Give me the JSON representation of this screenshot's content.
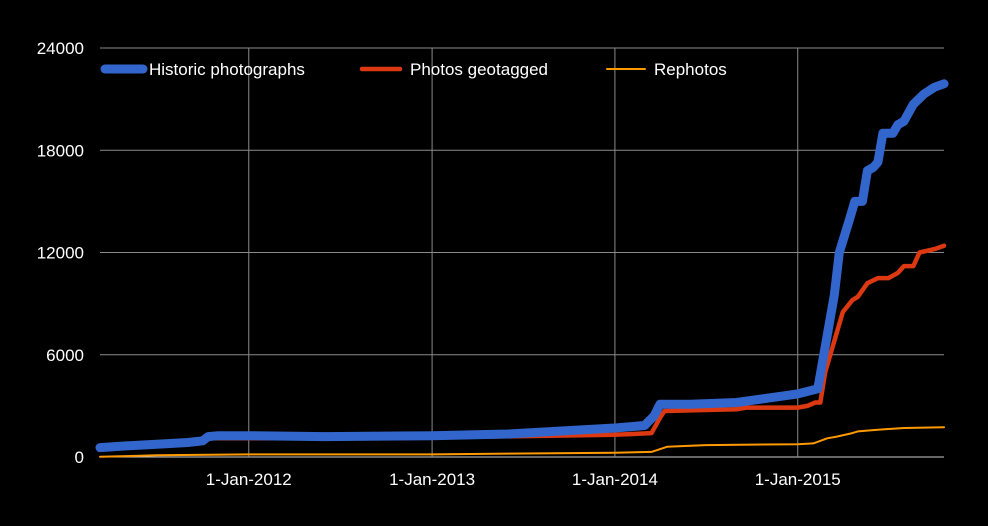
{
  "chart_data": {
    "type": "line",
    "title": "",
    "xlabel": "",
    "ylabel": "",
    "ylim": [
      0,
      24000
    ],
    "xlim": [
      "2011-03-10",
      "2015-10-20"
    ],
    "y_ticks": [
      0,
      6000,
      12000,
      18000,
      24000
    ],
    "y_tick_labels": [
      "0",
      "6000",
      "12000",
      "18000",
      "24000"
    ],
    "x_ticks": [
      "2012-01-01",
      "2013-01-01",
      "2014-01-01",
      "2015-01-01"
    ],
    "x_tick_labels": [
      "1-Jan-2012",
      "1-Jan-2013",
      "1-Jan-2014",
      "1-Jan-2015"
    ],
    "grid": true,
    "legend_position": "top",
    "background": "#000000",
    "series": [
      {
        "name": "Historic photographs",
        "color": "#3366cc",
        "points": [
          [
            "2011-03-10",
            550
          ],
          [
            "2011-05-01",
            650
          ],
          [
            "2011-07-01",
            750
          ],
          [
            "2011-09-01",
            850
          ],
          [
            "2011-10-01",
            950
          ],
          [
            "2011-10-12",
            1200
          ],
          [
            "2011-11-01",
            1250
          ],
          [
            "2012-01-01",
            1250
          ],
          [
            "2012-06-01",
            1200
          ],
          [
            "2013-01-01",
            1250
          ],
          [
            "2013-06-01",
            1350
          ],
          [
            "2014-01-01",
            1700
          ],
          [
            "2014-03-01",
            1850
          ],
          [
            "2014-03-20",
            2400
          ],
          [
            "2014-04-01",
            3100
          ],
          [
            "2014-06-01",
            3100
          ],
          [
            "2014-09-01",
            3200
          ],
          [
            "2015-01-01",
            3700
          ],
          [
            "2015-02-10",
            4000
          ],
          [
            "2015-02-25",
            6500
          ],
          [
            "2015-03-15",
            9500
          ],
          [
            "2015-03-25",
            12000
          ],
          [
            "2015-04-15",
            14000
          ],
          [
            "2015-04-25",
            15000
          ],
          [
            "2015-05-10",
            15000
          ],
          [
            "2015-05-20",
            16800
          ],
          [
            "2015-06-01",
            17000
          ],
          [
            "2015-06-10",
            17300
          ],
          [
            "2015-06-20",
            19000
          ],
          [
            "2015-07-10",
            19000
          ],
          [
            "2015-07-20",
            19500
          ],
          [
            "2015-08-01",
            19700
          ],
          [
            "2015-08-20",
            20700
          ],
          [
            "2015-09-10",
            21300
          ],
          [
            "2015-10-01",
            21700
          ],
          [
            "2015-10-20",
            21900
          ]
        ]
      },
      {
        "name": "Photos geotagged",
        "color": "#dc3912",
        "points": [
          [
            "2011-03-10",
            650
          ],
          [
            "2011-06-01",
            750
          ],
          [
            "2011-09-01",
            850
          ],
          [
            "2011-10-01",
            950
          ],
          [
            "2011-10-12",
            1100
          ],
          [
            "2012-01-01",
            1100
          ],
          [
            "2012-06-01",
            1100
          ],
          [
            "2013-01-01",
            1150
          ],
          [
            "2014-01-01",
            1300
          ],
          [
            "2014-03-15",
            1400
          ],
          [
            "2014-04-01",
            2300
          ],
          [
            "2014-04-10",
            2700
          ],
          [
            "2014-09-01",
            2800
          ],
          [
            "2014-09-20",
            2900
          ],
          [
            "2015-01-01",
            2900
          ],
          [
            "2015-01-20",
            3000
          ],
          [
            "2015-02-05",
            3200
          ],
          [
            "2015-02-15",
            3200
          ],
          [
            "2015-02-25",
            5000
          ],
          [
            "2015-03-15",
            6800
          ],
          [
            "2015-04-01",
            8500
          ],
          [
            "2015-04-20",
            9200
          ],
          [
            "2015-05-01",
            9400
          ],
          [
            "2015-05-20",
            10200
          ],
          [
            "2015-06-10",
            10500
          ],
          [
            "2015-07-01",
            10500
          ],
          [
            "2015-07-20",
            10800
          ],
          [
            "2015-08-01",
            11200
          ],
          [
            "2015-08-20",
            11200
          ],
          [
            "2015-09-01",
            12000
          ],
          [
            "2015-10-01",
            12200
          ],
          [
            "2015-10-20",
            12400
          ]
        ]
      },
      {
        "name": "Rephotos",
        "color": "#ff9900",
        "points": [
          [
            "2011-03-10",
            20
          ],
          [
            "2011-05-01",
            50
          ],
          [
            "2011-07-01",
            100
          ],
          [
            "2012-01-01",
            150
          ],
          [
            "2013-01-01",
            150
          ],
          [
            "2013-06-01",
            200
          ],
          [
            "2014-01-01",
            250
          ],
          [
            "2014-03-15",
            300
          ],
          [
            "2014-04-15",
            600
          ],
          [
            "2014-07-01",
            700
          ],
          [
            "2015-01-01",
            750
          ],
          [
            "2015-02-01",
            800
          ],
          [
            "2015-03-01",
            1100
          ],
          [
            "2015-03-20",
            1200
          ],
          [
            "2015-04-20",
            1400
          ],
          [
            "2015-05-01",
            1500
          ],
          [
            "2015-06-10",
            1600
          ],
          [
            "2015-08-01",
            1700
          ],
          [
            "2015-10-20",
            1750
          ]
        ]
      }
    ]
  }
}
